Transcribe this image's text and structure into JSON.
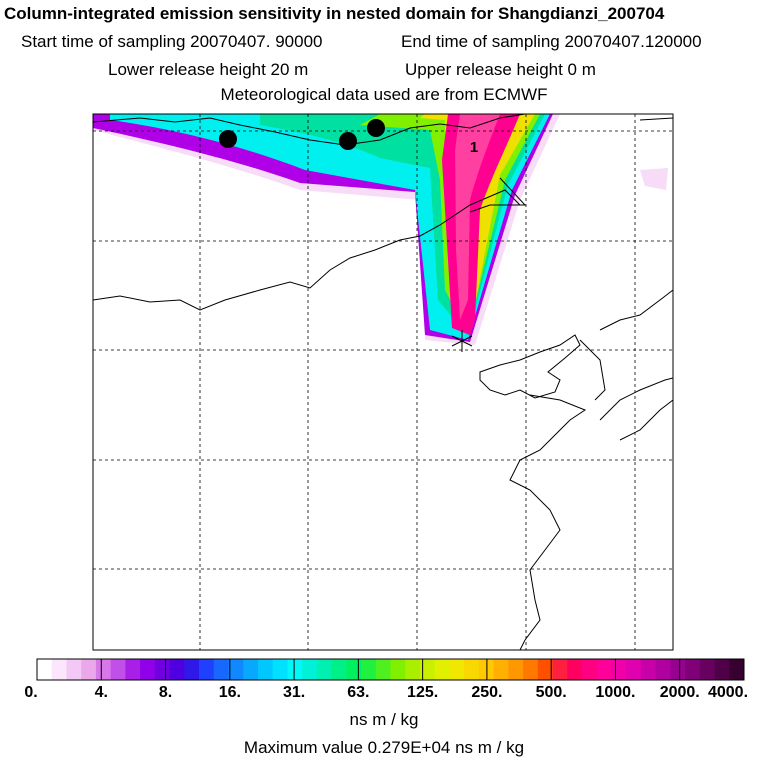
{
  "header": {
    "title": "Column-integrated emission sensitivity in nested domain for Shangdianzi_200704",
    "start_label": "Start time of sampling 20070407. 90000",
    "end_label": "End time of sampling 20070407.120000",
    "lower_label": "Lower release height   20 m",
    "upper_label": "Upper release height    0 m",
    "met_label": "Meteorological data used are from ECMWF"
  },
  "map": {
    "marker_label": "1",
    "plume_colors": {
      "white_edge": "#f6dcf6",
      "violet": "#b000e8",
      "cyan": "#00f0f0",
      "teal": "#00e0a0",
      "green": "#80f000",
      "yellow": "#f0e000",
      "magenta": "#ff0090",
      "pink": "#ff40a0"
    }
  },
  "colorbar": {
    "tick_labels": [
      "0.",
      "4.",
      "8.",
      "16.",
      "31.",
      "63.",
      "125.",
      "250.",
      "500.",
      "1000.",
      "2000.",
      "4000."
    ],
    "colors": [
      "#ffffff",
      "#fbe6fb",
      "#f4c8f4",
      "#eaa8ea",
      "#d878e8",
      "#c050e8",
      "#a820e8",
      "#9000e8",
      "#7000e0",
      "#5000e0",
      "#3018e8",
      "#2040ff",
      "#1868ff",
      "#1088ff",
      "#08a8ff",
      "#00c8ff",
      "#00e0ff",
      "#00f8f8",
      "#00f0d8",
      "#00f0b0",
      "#00f088",
      "#00f060",
      "#20f040",
      "#50f020",
      "#80f000",
      "#a8f000",
      "#c8f000",
      "#e0f000",
      "#f0e800",
      "#f8d800",
      "#ffc800",
      "#ffb000",
      "#ff9800",
      "#ff7800",
      "#ff5000",
      "#ff2040",
      "#ff0060",
      "#ff0080",
      "#ff0098",
      "#f000a8",
      "#e000b0",
      "#c800a8",
      "#b000a0",
      "#980090",
      "#800078",
      "#680060",
      "#500048",
      "#380030"
    ],
    "units": "ns m / kg",
    "max_value": "Maximum value  0.279E+04 ns m / kg"
  }
}
